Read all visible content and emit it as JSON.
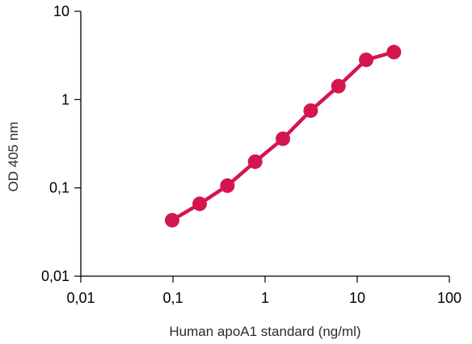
{
  "chart_data": {
    "type": "line",
    "title": "",
    "xlabel": "Human apoA1 standard (ng/ml)",
    "ylabel": "OD 405 nm",
    "x_scale": "log",
    "y_scale": "log",
    "xlim": [
      0.01,
      100
    ],
    "ylim": [
      0.01,
      10
    ],
    "x_ticks": [
      0.01,
      0.1,
      1,
      10,
      100
    ],
    "x_tick_labels": [
      "0,01",
      "0,1",
      "1",
      "10",
      "100"
    ],
    "y_ticks": [
      0.01,
      0.1,
      1,
      10
    ],
    "y_tick_labels": [
      "0,01",
      "0,1",
      "1",
      "10"
    ],
    "grid": false,
    "legend": "none",
    "colors": {
      "series": "#d3164e",
      "axis": "#000000"
    },
    "series": [
      {
        "x": [
          0.098,
          0.195,
          0.39,
          0.78,
          1.56,
          3.125,
          6.25,
          12.5,
          25
        ],
        "y": [
          0.043,
          0.066,
          0.106,
          0.198,
          0.36,
          0.75,
          1.42,
          2.82,
          3.45
        ]
      }
    ]
  }
}
